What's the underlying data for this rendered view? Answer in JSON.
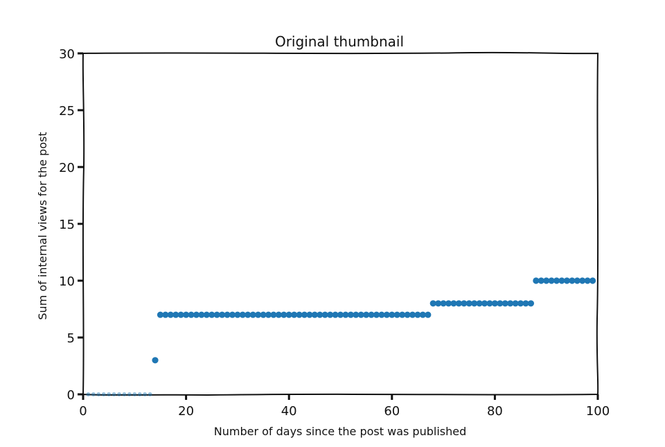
{
  "chart_data": {
    "type": "scatter",
    "title": "Original thumbnail",
    "xlabel": "Number of days since the post was published",
    "ylabel": "Sum of internal views for the post",
    "xlim": [
      0,
      100
    ],
    "ylim": [
      0,
      30
    ],
    "xticks": [
      "0",
      "20",
      "40",
      "60",
      "80",
      "100"
    ],
    "yticks": [
      "0",
      "5",
      "10",
      "15",
      "20",
      "25",
      "30"
    ],
    "grid": false,
    "marker_color": "#1f77b4",
    "series": [
      {
        "x": [
          1,
          2,
          3,
          4,
          5,
          6,
          7,
          8,
          9,
          10,
          11,
          12,
          13,
          14,
          15,
          16,
          17,
          18,
          19,
          20,
          21,
          22,
          23,
          24,
          25,
          26,
          27,
          28,
          29,
          30,
          31,
          32,
          33,
          34,
          35,
          36,
          37,
          38,
          39,
          40,
          41,
          42,
          43,
          44,
          45,
          46,
          47,
          48,
          49,
          50,
          51,
          52,
          53,
          54,
          55,
          56,
          57,
          58,
          59,
          60,
          61,
          62,
          63,
          64,
          65,
          66,
          67,
          68,
          69,
          70,
          71,
          72,
          73,
          74,
          75,
          76,
          77,
          78,
          79,
          80,
          81,
          82,
          83,
          84,
          85,
          86,
          87,
          88,
          89,
          90,
          91,
          92,
          93,
          94,
          95,
          96,
          97,
          98,
          99
        ],
        "y": [
          0,
          0,
          0,
          0,
          0,
          0,
          0,
          0,
          0,
          0,
          0,
          0,
          0,
          3,
          7,
          7,
          7,
          7,
          7,
          7,
          7,
          7,
          7,
          7,
          7,
          7,
          7,
          7,
          7,
          7,
          7,
          7,
          7,
          7,
          7,
          7,
          7,
          7,
          7,
          7,
          7,
          7,
          7,
          7,
          7,
          7,
          7,
          7,
          7,
          7,
          7,
          7,
          7,
          7,
          7,
          7,
          7,
          7,
          7,
          7,
          7,
          7,
          7,
          7,
          7,
          7,
          7,
          8,
          8,
          8,
          8,
          8,
          8,
          8,
          8,
          8,
          8,
          8,
          8,
          8,
          8,
          8,
          8,
          8,
          8,
          8,
          8,
          10,
          10,
          10,
          10,
          10,
          10,
          10,
          10,
          10,
          10,
          10,
          10
        ]
      }
    ]
  }
}
